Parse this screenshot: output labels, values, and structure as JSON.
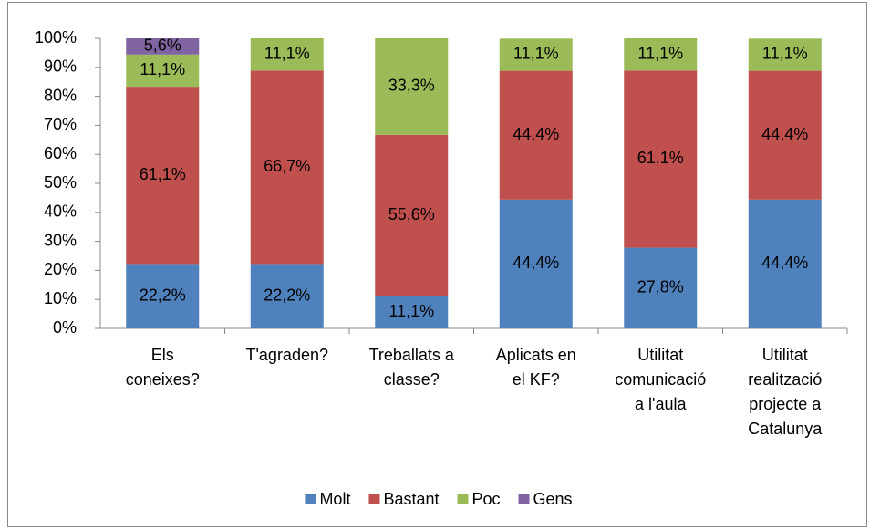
{
  "chart_data": {
    "type": "stacked_bar",
    "categories": [
      [
        "Els",
        "coneixes?"
      ],
      [
        "T'agraden?"
      ],
      [
        "Treballats a",
        "classe?"
      ],
      [
        "Aplicats en",
        "el KF?"
      ],
      [
        "Utilitat",
        "comunicació",
        "a l'aula"
      ],
      [
        "Utilitat",
        "realització",
        "projecte a",
        "Catalunya"
      ]
    ],
    "series": [
      {
        "name": "Molt",
        "color": "#4f81bd",
        "values": [
          22.2,
          22.2,
          11.1,
          44.4,
          27.8,
          44.4
        ],
        "value_labels": [
          "22,2%",
          "22,2%",
          "11,1%",
          "44,4%",
          "27,8%",
          "44,4%"
        ]
      },
      {
        "name": "Bastant",
        "color": "#c0504d",
        "values": [
          61.1,
          66.7,
          55.6,
          44.4,
          61.1,
          44.4
        ],
        "value_labels": [
          "61,1%",
          "66,7%",
          "55,6%",
          "44,4%",
          "61,1%",
          "44,4%"
        ]
      },
      {
        "name": "Poc",
        "color": "#9bbb59",
        "values": [
          11.1,
          11.1,
          33.3,
          11.1,
          11.1,
          11.1
        ],
        "value_labels": [
          "11,1%",
          "11,1%",
          "33,3%",
          "11,1%",
          "11,1%",
          "11,1%"
        ]
      },
      {
        "name": "Gens",
        "color": "#8064a2",
        "values": [
          5.6,
          null,
          null,
          null,
          null,
          null
        ],
        "value_labels": [
          "5,6%",
          null,
          null,
          null,
          null,
          null
        ]
      }
    ],
    "ylim": [
      0,
      100
    ],
    "yticks": [
      {
        "value": 0,
        "label": "0%"
      },
      {
        "value": 10,
        "label": "10%"
      },
      {
        "value": 20,
        "label": "20%"
      },
      {
        "value": 30,
        "label": "30%"
      },
      {
        "value": 40,
        "label": "40%"
      },
      {
        "value": 50,
        "label": "50%"
      },
      {
        "value": 60,
        "label": "60%"
      },
      {
        "value": 70,
        "label": "70%"
      },
      {
        "value": 80,
        "label": "80%"
      },
      {
        "value": 90,
        "label": "90%"
      },
      {
        "value": 100,
        "label": "100%"
      }
    ],
    "grid": false,
    "legend": "bottom"
  }
}
